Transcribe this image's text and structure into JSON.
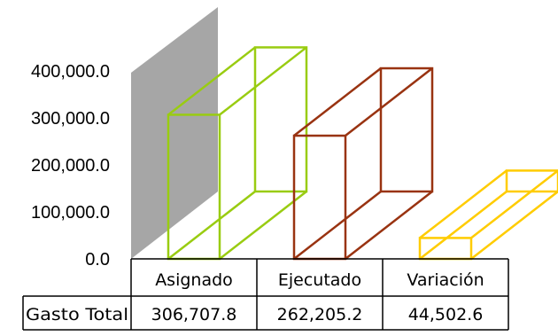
{
  "chart_data": {
    "type": "bar",
    "style": "3d-wireframe-columns",
    "categories": [
      "Asignado",
      "Ejecutado",
      "Variación"
    ],
    "values": [
      306707.8,
      262205.2,
      44502.6
    ],
    "value_labels": [
      "306,707.8",
      "262,205.2",
      "44,502.6"
    ],
    "row_label": "Gasto Total",
    "ylim": [
      0,
      400000
    ],
    "yticks": [
      "0.0",
      "100,000.0",
      "200,000.0",
      "300,000.0",
      "400,000.0"
    ],
    "ytick_values": [
      0,
      100000,
      200000,
      300000,
      400000
    ],
    "colors": [
      "#99cc11",
      "#993311",
      "#ffcc00"
    ],
    "grid": false,
    "data_table": true
  }
}
